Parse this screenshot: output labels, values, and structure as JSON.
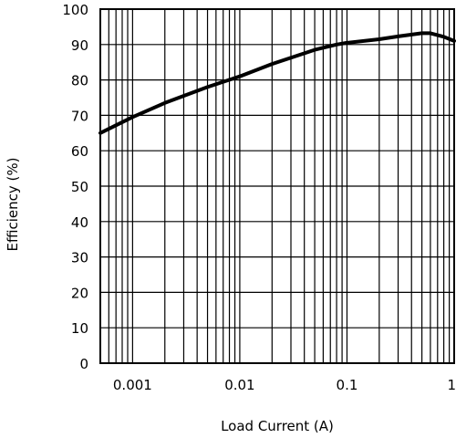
{
  "chart_data": {
    "type": "line",
    "title": "",
    "xlabel": "Load Current (A)",
    "ylabel": "Efficiency (%)",
    "x_scale": "log",
    "xlim": [
      0.0005,
      1
    ],
    "ylim": [
      0,
      100
    ],
    "x_ticks": [
      0.001,
      0.01,
      0.1,
      1
    ],
    "x_tick_labels": [
      "0.001",
      "0.01",
      "0.1",
      "1"
    ],
    "y_ticks": [
      0,
      10,
      20,
      30,
      40,
      50,
      60,
      70,
      80,
      90,
      100
    ],
    "y_tick_labels": [
      "0",
      "10",
      "20",
      "30",
      "40",
      "50",
      "60",
      "70",
      "80",
      "90",
      "100"
    ],
    "grid": true,
    "line_color": "#000000",
    "series": [
      {
        "x": [
          0.0005,
          0.001,
          0.002,
          0.005,
          0.01,
          0.02,
          0.05,
          0.08,
          0.1,
          0.2,
          0.3,
          0.5,
          0.6,
          0.8,
          1.0
        ],
        "y": [
          65,
          69.5,
          73.5,
          78,
          81,
          84.5,
          88.5,
          90,
          90.5,
          91.5,
          92.3,
          93.2,
          93.2,
          92.2,
          91.0
        ]
      }
    ]
  }
}
